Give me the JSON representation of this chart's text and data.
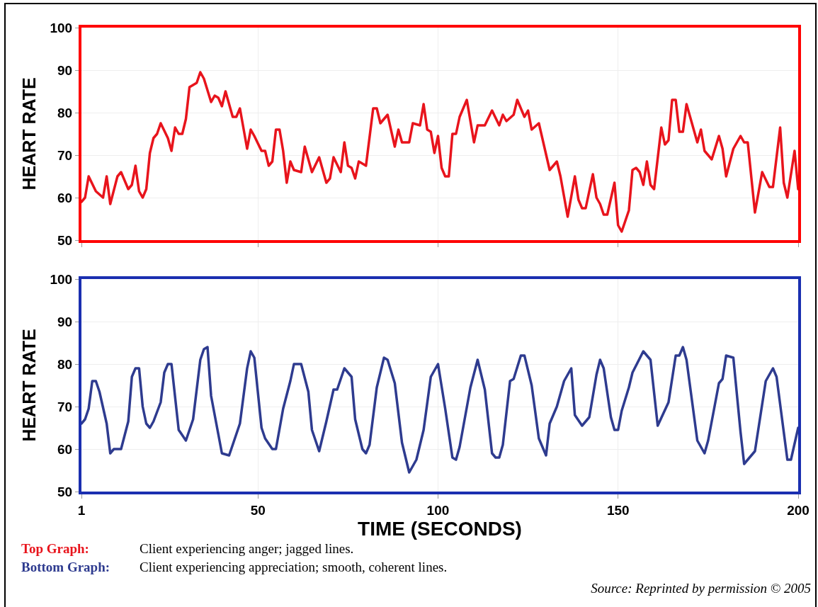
{
  "chart_data": [
    {
      "type": "line",
      "ylabel": "HEART RATE",
      "xlim": [
        1,
        200
      ],
      "xticks": [
        1,
        50,
        100,
        150,
        200
      ],
      "ylim": [
        50,
        100
      ],
      "yticks": [
        50,
        60,
        70,
        80,
        90,
        100
      ],
      "grid": true,
      "tick_labels": "y",
      "x": [
        1,
        2,
        3,
        5,
        7,
        8,
        9,
        11,
        12,
        14,
        15,
        16,
        17,
        18,
        19,
        20,
        21,
        22,
        23,
        25,
        26,
        27,
        28,
        29,
        30,
        31,
        32,
        33,
        34,
        35,
        37,
        38,
        39,
        40,
        41,
        43,
        44,
        45,
        47,
        48,
        49,
        51,
        52,
        53,
        54,
        55,
        56,
        57,
        58,
        59,
        60,
        62,
        63,
        65,
        67,
        69,
        70,
        71,
        73,
        74,
        75,
        76,
        77,
        78,
        80,
        82,
        83,
        84,
        86,
        88,
        89,
        90,
        92,
        93,
        95,
        96,
        97,
        98,
        99,
        100,
        101,
        102,
        103,
        104,
        105,
        106,
        108,
        110,
        111,
        113,
        115,
        117,
        118,
        119,
        121,
        122,
        124,
        125,
        126,
        128,
        131,
        133,
        134,
        136,
        138,
        139,
        140,
        141,
        143,
        144,
        145,
        146,
        147,
        149,
        150,
        151,
        153,
        154,
        155,
        156,
        157,
        158,
        159,
        160,
        162,
        163,
        164,
        165,
        166,
        167,
        168,
        169,
        170,
        172,
        173,
        174,
        176,
        178,
        179,
        180,
        182,
        184,
        185,
        186,
        188,
        190,
        192,
        193,
        195,
        196,
        197,
        199,
        200
      ],
      "series": [
        {
          "color": "#e8141c",
          "values": [
            59,
            60,
            65,
            61.5,
            60,
            65,
            58.5,
            65,
            66,
            62,
            63,
            67.5,
            61.5,
            60,
            62,
            70.5,
            74,
            75,
            77.5,
            74,
            71,
            76.5,
            75,
            75,
            78.5,
            86,
            86.5,
            87,
            89.5,
            88,
            82.5,
            84,
            83.5,
            81.5,
            85,
            79,
            79,
            81,
            71.5,
            76,
            74.5,
            71,
            71,
            67.5,
            68.5,
            76,
            76,
            71,
            63.5,
            68.5,
            66.5,
            66,
            72,
            66,
            69.5,
            63.5,
            64.5,
            69.5,
            66,
            73,
            67.5,
            67,
            64.5,
            68.5,
            67.5,
            81,
            81,
            77.5,
            79.5,
            72,
            76,
            73,
            73,
            77.5,
            77,
            82,
            76,
            75.5,
            70.5,
            74.5,
            67,
            65,
            65,
            75,
            75,
            79,
            83,
            73,
            77,
            77,
            80.5,
            77,
            79.5,
            78,
            79.5,
            83,
            79,
            80.5,
            76,
            77.5,
            66.5,
            68.5,
            65,
            55.5,
            65,
            59.5,
            57.5,
            57.5,
            65.5,
            60,
            58.5,
            56,
            56,
            63.5,
            53.5,
            52,
            57,
            66.5,
            67,
            66,
            63,
            68.5,
            63,
            62,
            76.5,
            72.5,
            73.5,
            83,
            83,
            75.5,
            75.5,
            82,
            79,
            73,
            76,
            71,
            69,
            74.5,
            71.5,
            65,
            71.5,
            74.5,
            73,
            73,
            56.5,
            66,
            62.5,
            62.5,
            76.5,
            63.5,
            60,
            71,
            62
          ]
        }
      ]
    },
    {
      "type": "line",
      "ylabel": "HEART RATE",
      "xlabel": "TIME (SECONDS)",
      "xlim": [
        1,
        200
      ],
      "xticks": [
        1,
        50,
        100,
        150,
        200
      ],
      "ylim": [
        50,
        100
      ],
      "yticks": [
        50,
        60,
        70,
        80,
        90,
        100
      ],
      "grid": true,
      "x": [
        1,
        2,
        3,
        4,
        5,
        6,
        8,
        9,
        10,
        12,
        14,
        15,
        16,
        17,
        18,
        19,
        20,
        21,
        23,
        24,
        25,
        26,
        28,
        30,
        32,
        34,
        35,
        36,
        37,
        39,
        40,
        42,
        45,
        47,
        48,
        49,
        51,
        52,
        54,
        55,
        57,
        59,
        60,
        62,
        64,
        65,
        67,
        69,
        71,
        72,
        74,
        76,
        77,
        79,
        80,
        81,
        83,
        85,
        86,
        88,
        90,
        92,
        94,
        96,
        98,
        100,
        102,
        104,
        105,
        106,
        109,
        111,
        113,
        115,
        116,
        117,
        118,
        120,
        121,
        123,
        124,
        126,
        128,
        130,
        131,
        133,
        135,
        137,
        138,
        140,
        142,
        144,
        145,
        146,
        148,
        149,
        150,
        151,
        153,
        154,
        157,
        159,
        161,
        164,
        166,
        167,
        168,
        169,
        172,
        174,
        175,
        178,
        179,
        180,
        182,
        184,
        185,
        188,
        191,
        193,
        194,
        197,
        198,
        200
      ],
      "series": [
        {
          "color": "#2e3b8f",
          "values": [
            66,
            67,
            69.5,
            76,
            76,
            73.5,
            66,
            59,
            60,
            60,
            66.5,
            77,
            79,
            79,
            70,
            66,
            65,
            66.5,
            71,
            78,
            80,
            80,
            64.5,
            62,
            67,
            81,
            83.5,
            84,
            72.5,
            63.5,
            59,
            58.5,
            66,
            79,
            83,
            81.5,
            65,
            62.5,
            60,
            60,
            69.5,
            76,
            80,
            80,
            73.5,
            64.5,
            59.5,
            66.5,
            74,
            74,
            79,
            77,
            67,
            60,
            59,
            61,
            74.5,
            81.5,
            81,
            75.5,
            61.5,
            54.5,
            57.5,
            64.5,
            77,
            80,
            69.5,
            58,
            57.5,
            60.5,
            74.5,
            81,
            74,
            59,
            58,
            58,
            61,
            76,
            76.5,
            82,
            82,
            75,
            62.5,
            58.5,
            66,
            70,
            76,
            79,
            68,
            65.5,
            67.5,
            77.5,
            81,
            79,
            67.5,
            64.5,
            64.5,
            69,
            74.5,
            78,
            83,
            81,
            65.5,
            71,
            82,
            82,
            84,
            81,
            62,
            59,
            62,
            75.5,
            76.5,
            82,
            81.5,
            64,
            56.5,
            59.5,
            76,
            79,
            77,
            57.5,
            57.5,
            65
          ]
        }
      ],
      "annotations": [
        "Top Graph:",
        "Client experiencing anger; jagged lines.",
        "Bottom Graph:",
        "Client experiencing appreciation; smooth, coherent lines.",
        "Source:  Reprinted by permission © 2005"
      ]
    }
  ]
}
